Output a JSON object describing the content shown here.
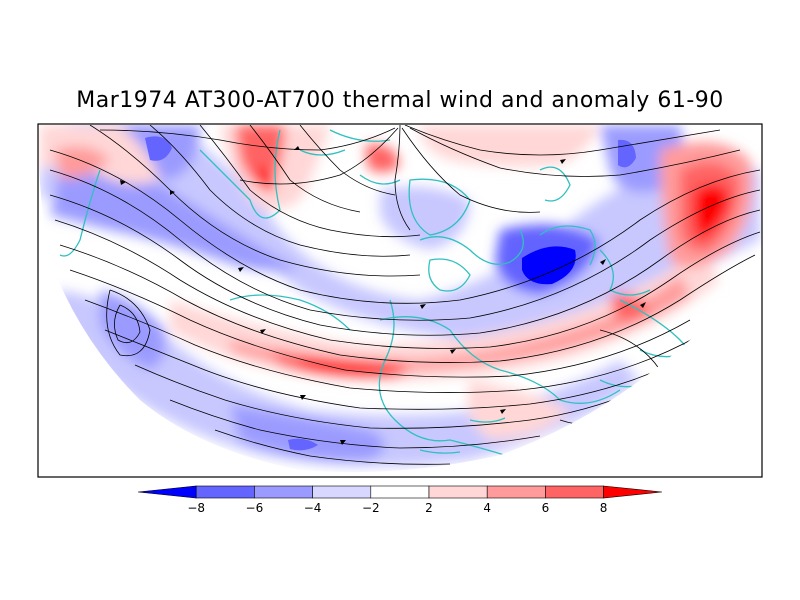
{
  "title": "Mar1974 AT300-AT700 thermal wind and anomaly 61-90",
  "colorbar": {
    "tick_labels": [
      "-8",
      "-6",
      "-4",
      "-2",
      "2",
      "4",
      "6",
      "8"
    ],
    "colors": [
      "#0000ff",
      "#6464ff",
      "#9b9bff",
      "#d7d7ff",
      "#ffffff",
      "#ffd7d7",
      "#ff9b9b",
      "#ff6464",
      "#ff0000"
    ]
  },
  "palette": {
    "coastline": "#30c0c0",
    "streamline": "#000000",
    "frame": "#000000"
  }
}
